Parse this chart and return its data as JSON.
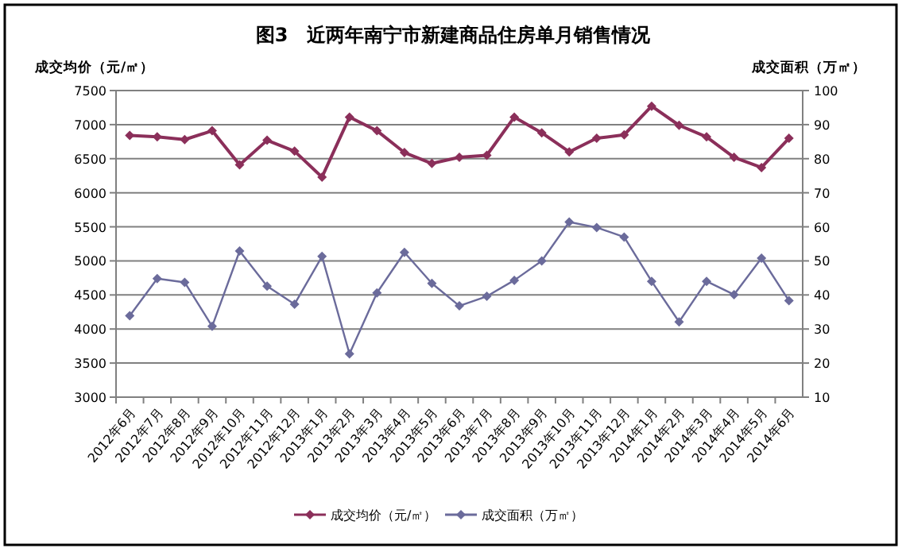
{
  "chart_data": {
    "type": "line",
    "title": "图3　近两年南宁市新建商品住房单月销售情况",
    "ylabel": "成交均价（元/㎡）",
    "y2label": "成交面积（万㎡）",
    "categories": [
      "2012年6月",
      "2012年7月",
      "2012年8月",
      "2012年9月",
      "2012年10月",
      "2012年11月",
      "2012年12月",
      "2013年1月",
      "2013年2月",
      "2013年3月",
      "2013年4月",
      "2013年5月",
      "2013年6月",
      "2013年7月",
      "2013年8月",
      "2013年9月",
      "2013年10月",
      "2013年11月",
      "2013年12月",
      "2014年1月",
      "2014年2月",
      "2014年3月",
      "2014年4月",
      "2014年5月",
      "2014年6月"
    ],
    "series": [
      {
        "name": "成交均价（元/㎡）",
        "color": "#8b2f5a",
        "values": [
          6840,
          6820,
          6780,
          6910,
          6410,
          6770,
          6610,
          6230,
          7110,
          6910,
          6590,
          6430,
          6520,
          6550,
          7110,
          6880,
          6600,
          6800,
          6850,
          7270,
          6990,
          6820,
          6520,
          6370,
          6800
        ]
      },
      {
        "name": "成交面积（万㎡）",
        "color": "#6b6b9b",
        "axis": "y2",
        "values": [
          33.9,
          44.8,
          43.7,
          30.8,
          52.9,
          42.6,
          37.3,
          51.3,
          22.7,
          40.6,
          52.5,
          43.4,
          36.8,
          39.6,
          44.3,
          50.0,
          61.4,
          59.8,
          57.0,
          44.0,
          32.1,
          44.0,
          40.1,
          50.8,
          38.3
        ]
      }
    ],
    "ylim": [
      3000,
      7500
    ],
    "yticks": [
      3000,
      3500,
      4000,
      4500,
      5000,
      5500,
      6000,
      6500,
      7000,
      7500
    ],
    "y2lim": [
      10,
      100
    ],
    "y2ticks": [
      10,
      20,
      30,
      40,
      50,
      60,
      70,
      80,
      90,
      100
    ],
    "grid": "y",
    "legend": "bottom",
    "marker": "diamond",
    "line_style": "solid"
  }
}
